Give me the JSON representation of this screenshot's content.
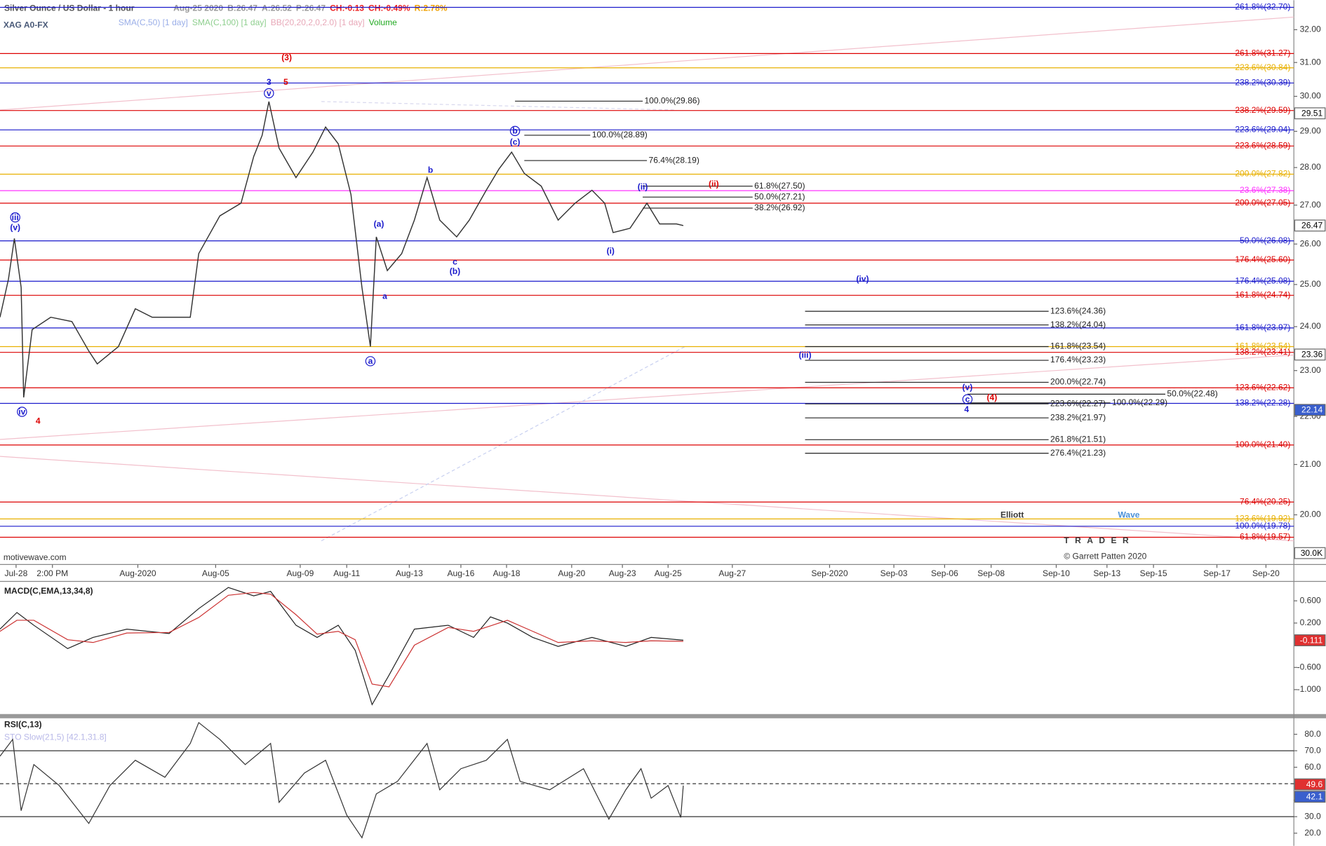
{
  "chart_data": [
    {
      "type": "line",
      "panel": "price",
      "log": true,
      "title": "Silver Ounce / US Dollar - 1 hour",
      "symbol": "XAG A0-FX",
      "quote": [
        {
          "text": "Aug-25 2020",
          "color": "#999999"
        },
        {
          "text": "B:26.47",
          "color": "#999999"
        },
        {
          "text": "A:26.52",
          "color": "#999999"
        },
        {
          "text": "P:26.47",
          "color": "#999999"
        },
        {
          "text": "CH:-0.13",
          "color": "#ee2222"
        },
        {
          "text": "CH:-0.49%",
          "color": "#ee2222"
        },
        {
          "text": "R:2.78%",
          "color": "#f0a000"
        }
      ],
      "indicators": [
        {
          "text": "SMA(C,50) [1 day]",
          "color": "#9aaee8"
        },
        {
          "text": "SMA(C,100) [1 day]",
          "color": "#8fcf8f"
        },
        {
          "text": "BB(20,20,2,0,2.0) [1 day]",
          "color": "#e8a8b8"
        },
        {
          "text": "Volume",
          "color": "#22aa22"
        }
      ],
      "watermark": "motivewave.com",
      "logo": [
        "Elliott",
        "Wave",
        "TRADER"
      ],
      "copyright": "© Garrett Patten 2020",
      "color": "#333333",
      "xlim": [
        0,
        1530
      ],
      "xticks": [
        {
          "value": 19,
          "label": "Jul-28"
        },
        {
          "value": 62,
          "label": "2:00 PM"
        },
        {
          "value": 163,
          "label": "Aug-2020"
        },
        {
          "value": 255,
          "label": "Aug-05"
        },
        {
          "value": 355,
          "label": "Aug-09"
        },
        {
          "value": 410,
          "label": "Aug-11"
        },
        {
          "value": 484,
          "label": "Aug-13"
        },
        {
          "value": 545,
          "label": "Aug-16"
        },
        {
          "value": 599,
          "label": "Aug-18"
        },
        {
          "value": 676,
          "label": "Aug-20"
        },
        {
          "value": 736,
          "label": "Aug-23"
        },
        {
          "value": 790,
          "label": "Aug-25"
        },
        {
          "value": 866,
          "label": "Aug-27"
        },
        {
          "value": 981,
          "label": "Sep-2020"
        },
        {
          "value": 1057,
          "label": "Sep-03"
        },
        {
          "value": 1117,
          "label": "Sep-06"
        },
        {
          "value": 1172,
          "label": "Sep-08"
        },
        {
          "value": 1249,
          "label": "Sep-10"
        },
        {
          "value": 1309,
          "label": "Sep-13"
        },
        {
          "value": 1364,
          "label": "Sep-15"
        },
        {
          "value": 1439,
          "label": "Sep-17"
        },
        {
          "value": 1497,
          "label": "Sep-20"
        }
      ],
      "ylim": [
        19.06,
        32.93
      ],
      "yticks": [
        {
          "value": 20,
          "label": "20.00"
        },
        {
          "value": 21,
          "label": "21.00"
        },
        {
          "value": 22,
          "label": "22.00"
        },
        {
          "value": 23,
          "label": "23.00"
        },
        {
          "value": 24,
          "label": "24.00"
        },
        {
          "value": 25,
          "label": "25.00"
        },
        {
          "value": 26,
          "label": "26.00"
        },
        {
          "value": 27,
          "label": "27.00"
        },
        {
          "value": 28,
          "label": "28.00"
        },
        {
          "value": 29,
          "label": "29.00"
        },
        {
          "value": 30,
          "label": "30.00"
        },
        {
          "value": 31,
          "label": "31.00"
        },
        {
          "value": 32,
          "label": "32.00"
        }
      ],
      "x": [
        0,
        10,
        17,
        25,
        28,
        38,
        60,
        85,
        105,
        115,
        140,
        160,
        180,
        225,
        235,
        260,
        285,
        300,
        310,
        318,
        330,
        350,
        370,
        385,
        400,
        415,
        428,
        438,
        445,
        458,
        475,
        490,
        505,
        520,
        540,
        555,
        575,
        590,
        605,
        620,
        640,
        660,
        680,
        700,
        715,
        725,
        745,
        765,
        780,
        800,
        808
      ],
      "values": [
        24.22,
        25.13,
        26.14,
        24.93,
        22.41,
        23.93,
        24.22,
        24.12,
        23.44,
        23.15,
        23.54,
        24.42,
        24.22,
        24.22,
        25.76,
        26.72,
        27.05,
        28.3,
        28.89,
        29.85,
        28.53,
        27.73,
        28.42,
        29.12,
        28.65,
        27.28,
        24.93,
        23.54,
        26.18,
        25.34,
        25.76,
        26.61,
        27.73,
        26.61,
        26.18,
        26.61,
        27.39,
        27.96,
        28.42,
        27.84,
        27.5,
        26.61,
        27.05,
        27.39,
        27.05,
        26.29,
        26.4,
        27.05,
        26.51,
        26.51,
        26.47
      ],
      "fib_levels": [
        {
          "label": "261.8%(32.70)",
          "value": 32.7,
          "color": "#1a1acc"
        },
        {
          "label": "261.8%(31.27)",
          "value": 31.27,
          "color": "#dd0000"
        },
        {
          "label": "223.6%(30.84)",
          "value": 30.84,
          "color": "#e8b000"
        },
        {
          "label": "238.2%(30.39)",
          "value": 30.39,
          "color": "#1a1acc"
        },
        {
          "label": "238.2%(29.59)",
          "value": 29.59,
          "color": "#dd0000"
        },
        {
          "label": "223.6%(29.04)",
          "value": 29.04,
          "color": "#1a1acc"
        },
        {
          "label": "223.6%(28.59)",
          "value": 28.59,
          "color": "#dd0000"
        },
        {
          "label": "200.0%(27.82)",
          "value": 27.82,
          "color": "#e8b000"
        },
        {
          "label": "23.6%(27.38)",
          "value": 27.38,
          "color": "#ff33ff"
        },
        {
          "label": "200.0%(27.05)",
          "value": 27.05,
          "color": "#dd0000"
        },
        {
          "label": "50.0%(26.08)",
          "value": 26.08,
          "color": "#1a1acc"
        },
        {
          "label": "176.4%(25.60)",
          "value": 25.6,
          "color": "#dd0000"
        },
        {
          "label": "176.4%(25.08)",
          "value": 25.08,
          "color": "#1a1acc"
        },
        {
          "label": "161.8%(24.74)",
          "value": 24.74,
          "color": "#dd0000"
        },
        {
          "label": "161.8%(23.97)",
          "value": 23.97,
          "color": "#1a1acc"
        },
        {
          "label": "161.8%(23.54)",
          "value": 23.54,
          "color": "#e8b000"
        },
        {
          "label": "138.2%(23.41)",
          "value": 23.41,
          "color": "#dd0000"
        },
        {
          "label": "123.6%(22.62)",
          "value": 22.62,
          "color": "#dd0000"
        },
        {
          "label": "138.2%(22.28)",
          "value": 22.28,
          "color": "#1a1acc"
        },
        {
          "label": "100.0%(21.40)",
          "value": 21.4,
          "color": "#dd0000"
        },
        {
          "label": "76.4%(20.25)",
          "value": 20.25,
          "color": "#dd0000"
        },
        {
          "label": "123.6%(19.92)",
          "value": 19.92,
          "color": "#e8b000"
        },
        {
          "label": "100.0%(19.78)",
          "value": 19.78,
          "color": "#1a1acc"
        },
        {
          "label": "61.8%(19.57)",
          "value": 19.57,
          "color": "#dd0000"
        }
      ],
      "projections": [
        {
          "label": "100.0%(29.86)",
          "value": 29.86,
          "x": [
            609,
            760
          ]
        },
        {
          "label": "100.0%(28.89)",
          "value": 28.89,
          "x": [
            620,
            698
          ]
        },
        {
          "label": "76.4%(28.19)",
          "value": 28.19,
          "x": [
            620,
            765
          ]
        },
        {
          "label": "61.8%(27.50)",
          "value": 27.5,
          "x": [
            760,
            890
          ]
        },
        {
          "label": "50.0%(27.21)",
          "value": 27.21,
          "x": [
            760,
            890
          ]
        },
        {
          "label": "38.2%(26.92)",
          "value": 26.92,
          "x": [
            760,
            890
          ]
        },
        {
          "label": "123.6%(24.36)",
          "value": 24.36,
          "x": [
            952,
            1240
          ]
        },
        {
          "label": "138.2%(24.04)",
          "value": 24.04,
          "x": [
            952,
            1240
          ]
        },
        {
          "label": "161.8%(23.54)",
          "value": 23.54,
          "x": [
            952,
            1240
          ]
        },
        {
          "label": "176.4%(23.23)",
          "value": 23.23,
          "x": [
            952,
            1240
          ]
        },
        {
          "label": "200.0%(22.74)",
          "value": 22.74,
          "x": [
            952,
            1240
          ]
        },
        {
          "label": "223.6%(22.27)",
          "value": 22.27,
          "x": [
            952,
            1240
          ]
        },
        {
          "label": "238.2%(21.97)",
          "value": 21.97,
          "x": [
            952,
            1240
          ]
        },
        {
          "label": "261.8%(21.51)",
          "value": 21.51,
          "x": [
            952,
            1240
          ]
        },
        {
          "label": "276.4%(21.23)",
          "value": 21.23,
          "x": [
            952,
            1240
          ]
        },
        {
          "label": "100.0%(22.29)",
          "value": 22.29,
          "x": [
            1144,
            1313
          ]
        },
        {
          "label": "50.0%(22.48)",
          "value": 22.48,
          "x": [
            1144,
            1378
          ]
        }
      ],
      "wave_labels": [
        {
          "text": "(3)",
          "x": 339,
          "y": 31.15,
          "color": "#dd0000"
        },
        {
          "text": "3",
          "x": 318,
          "y": 30.42,
          "color": "#1a1acc"
        },
        {
          "text": "5",
          "x": 338,
          "y": 30.42,
          "color": "#dd0000"
        },
        {
          "text": "v",
          "x": 318,
          "y": 30.09,
          "color": "#1a1acc",
          "circled": true
        },
        {
          "text": "iii",
          "x": 18,
          "y": 26.68,
          "color": "#1a1acc",
          "circled": true
        },
        {
          "text": "(v)",
          "x": 18,
          "y": 26.42,
          "color": "#1a1acc"
        },
        {
          "text": "iv",
          "x": 26,
          "y": 22.1,
          "color": "#1a1acc",
          "circled": true
        },
        {
          "text": "4",
          "x": 45,
          "y": 21.9,
          "color": "#dd0000"
        },
        {
          "text": "(a)",
          "x": 448,
          "y": 26.51,
          "color": "#1a1acc"
        },
        {
          "text": "a",
          "x": 455,
          "y": 24.72,
          "color": "#1a1acc"
        },
        {
          "text": "a",
          "x": 438,
          "y": 23.21,
          "color": "#1a1acc",
          "circled": true
        },
        {
          "text": "b",
          "x": 509,
          "y": 27.93,
          "color": "#1a1acc"
        },
        {
          "text": "c",
          "x": 538,
          "y": 25.55,
          "color": "#1a1acc"
        },
        {
          "text": "(b)",
          "x": 538,
          "y": 25.32,
          "color": "#1a1acc"
        },
        {
          "text": "b",
          "x": 609,
          "y": 29.01,
          "color": "#1a1acc",
          "circled": true
        },
        {
          "text": "(c)",
          "x": 609,
          "y": 28.7,
          "color": "#1a1acc"
        },
        {
          "text": "(ii)",
          "x": 760,
          "y": 27.48,
          "color": "#1a1acc"
        },
        {
          "text": "(ii)",
          "x": 844,
          "y": 27.55,
          "color": "#dd0000"
        },
        {
          "text": "(i)",
          "x": 722,
          "y": 25.82,
          "color": "#1a1acc"
        },
        {
          "text": "(iv)",
          "x": 1020,
          "y": 25.13,
          "color": "#1a1acc"
        },
        {
          "text": "(iii)",
          "x": 952,
          "y": 23.35,
          "color": "#1a1acc"
        },
        {
          "text": "(v)",
          "x": 1144,
          "y": 22.63,
          "color": "#1a1acc"
        },
        {
          "text": "c",
          "x": 1144,
          "y": 22.37,
          "color": "#1a1acc",
          "circled": true
        },
        {
          "text": "4",
          "x": 1143,
          "y": 22.15,
          "color": "#1a1acc"
        },
        {
          "text": "(4)",
          "x": 1173,
          "y": 22.41,
          "color": "#dd0000"
        }
      ],
      "axis_tags": [
        {
          "label": "29.51",
          "value": 29.51,
          "fill": "#ffffff",
          "text_color": "#000000"
        },
        {
          "label": "26.47",
          "value": 26.47,
          "fill": "#ffffff",
          "text_color": "#000000"
        },
        {
          "label": "23.36",
          "value": 23.36,
          "fill": "#ffffff",
          "text_color": "#000000"
        },
        {
          "label": "22.14",
          "value": 22.14,
          "fill": "#3a5fcd",
          "text_color": "#ffffff"
        }
      ],
      "volume_tag": "30.0K"
    },
    {
      "type": "line",
      "panel": "macd",
      "title": "MACD(C,EMA,13,34,8)",
      "xlim": [
        0,
        1530
      ],
      "ylim": [
        -1.44,
        0.95
      ],
      "yticks": [
        {
          "value": 0.6,
          "label": "0.600"
        },
        {
          "value": 0.2,
          "label": "0.200"
        },
        {
          "value": -0.6,
          "label": "-0.600"
        },
        {
          "value": -1.0,
          "label": "-1.000"
        }
      ],
      "x": [
        0,
        20,
        40,
        80,
        110,
        150,
        200,
        235,
        270,
        300,
        320,
        350,
        375,
        400,
        420,
        440,
        460,
        490,
        530,
        560,
        580,
        600,
        630,
        660,
        700,
        740,
        770,
        808
      ],
      "series": [
        {
          "color": "#222222",
          "values": [
            0.09,
            0.39,
            0.16,
            -0.26,
            -0.06,
            0.09,
            0.01,
            0.46,
            0.84,
            0.69,
            0.77,
            0.16,
            -0.06,
            0.16,
            -0.29,
            -1.27,
            -0.74,
            0.09,
            0.16,
            -0.06,
            0.31,
            0.2,
            -0.06,
            -0.22,
            -0.06,
            -0.22,
            -0.06,
            -0.11
          ]
        },
        {
          "color": "#cc3333",
          "values": [
            0.05,
            0.25,
            0.25,
            -0.1,
            -0.15,
            0.02,
            0.03,
            0.3,
            0.7,
            0.75,
            0.72,
            0.35,
            0.0,
            0.05,
            -0.1,
            -0.9,
            -0.95,
            -0.2,
            0.12,
            0.05,
            0.15,
            0.25,
            0.05,
            -0.15,
            -0.12,
            -0.15,
            -0.12,
            -0.13
          ]
        }
      ],
      "axis_tags": [
        {
          "label": "-0.111",
          "value": -0.111,
          "fill": "#e03030",
          "text_color": "#ffffff"
        }
      ]
    },
    {
      "type": "line",
      "panel": "rsi",
      "title": "RSI(C,13)",
      "subtitle": "STO Slow(21,5) [42.1,31.8]",
      "xlim": [
        0,
        1530
      ],
      "ylim": [
        12.3,
        89.7
      ],
      "yticks": [
        {
          "value": 80,
          "label": "80.0"
        },
        {
          "value": 70,
          "label": "70.0"
        },
        {
          "value": 60,
          "label": "60.0"
        },
        {
          "value": 50,
          "label": "50.0"
        },
        {
          "value": 40,
          "label": "40.0"
        },
        {
          "value": 30,
          "label": "30.0"
        },
        {
          "value": 20,
          "label": "20.0"
        }
      ],
      "levels": [
        70,
        50,
        30
      ],
      "x": [
        0,
        15,
        25,
        40,
        70,
        105,
        130,
        160,
        195,
        225,
        235,
        260,
        290,
        320,
        330,
        360,
        385,
        410,
        428,
        445,
        470,
        505,
        520,
        545,
        575,
        600,
        615,
        650,
        690,
        720,
        740,
        758,
        770,
        790,
        805,
        808
      ],
      "values": [
        66.7,
        76.9,
        33.6,
        61.6,
        48.9,
        25.9,
        48.9,
        64.2,
        53.9,
        74.4,
        87.1,
        76.9,
        61.6,
        74.4,
        38.7,
        56.5,
        64.2,
        31.0,
        17.2,
        43.8,
        51.4,
        74.4,
        46.3,
        59.1,
        64.2,
        76.9,
        51.4,
        46.3,
        59.1,
        28.5,
        46.3,
        59.1,
        41.2,
        48.9,
        29.5,
        48.9
      ],
      "color": "#333333",
      "axis_tags": [
        {
          "label": "49.6",
          "value": 49.6,
          "fill": "#e03030",
          "text_color": "#ffffff"
        },
        {
          "label": "42.1",
          "value": 42.1,
          "fill": "#3a5fcd",
          "text_color": "#ffffff"
        }
      ]
    }
  ]
}
